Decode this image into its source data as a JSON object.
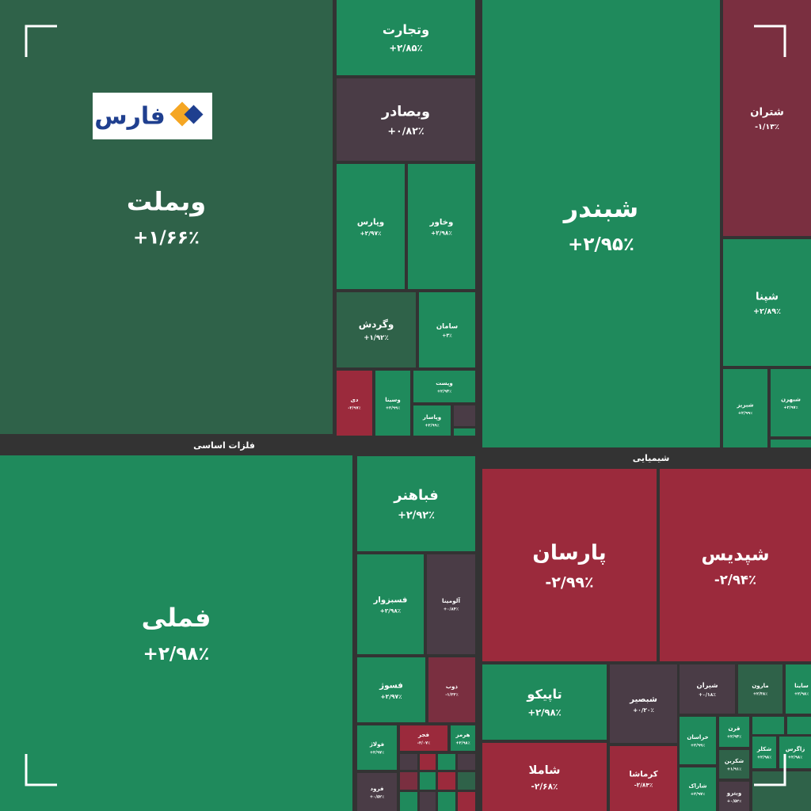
{
  "chart_data": {
    "type": "treemap",
    "logo": "فارس",
    "group_labels": [
      "فلزات اساسی",
      "شیمیایی"
    ],
    "categories": [
      "وبملت",
      "وتجارت",
      "وبصادر",
      "وپارس",
      "وخاور",
      "وگردش",
      "سامان",
      "دی",
      "وسینا",
      "وپست",
      "وپاسار",
      "شبندر",
      "شتران",
      "شپنا",
      "شبریز",
      "شبهرن",
      "فملی",
      "فباهنر",
      "فسبزوار",
      "آلومینا",
      "فسوژ",
      "ذوب",
      "فولاژ",
      "فجر",
      "هرمز",
      "فرود",
      "پارسان",
      "شپدیس",
      "تاپیکو",
      "شبصیر",
      "شاملا",
      "کرماشا",
      "شیران",
      "مارون",
      "ساینا",
      "خراسان",
      "قرن",
      "شکربن",
      "شاراک",
      "وبترو",
      "شکلر",
      "زاگرس"
    ],
    "values": [
      1.66,
      2.85,
      0.82,
      2.97,
      2.98,
      1.92,
      3,
      -2.97,
      2.99,
      2.94,
      2.99,
      2.95,
      -1.13,
      2.89,
      2.99,
      2.97,
      2.98,
      2.92,
      2.98,
      0.84,
      2.97,
      -1.33,
      2.97,
      -2.07,
      2.98,
      0.52,
      -2.99,
      -2.94,
      2.98,
      0.2,
      -2.68,
      -2.84,
      0.18,
      2.38,
      2.98,
      2.99,
      2.94,
      1.91,
      2.97,
      0.52,
      2.98,
      2.98
    ],
    "value_labels": [
      "+۱/۶۶٪",
      "+۲/۸۵٪",
      "+۰/۸۲٪",
      "+۲/۹۷٪",
      "+۲/۹۸٪",
      "+۱/۹۲٪",
      "+۳٪",
      "-۲/۹۷٪",
      "+۲/۹۹٪",
      "+۲/۹۴٪",
      "+۲/۹۹٪",
      "+۲/۹۵٪",
      "-۱/۱۳٪",
      "+۲/۸۹٪",
      "+۲/۹۹٪",
      "+۲/۹۷٪",
      "+۲/۹۸٪",
      "+۲/۹۲٪",
      "+۲/۹۸٪",
      "+۰/۸۴٪",
      "+۲/۹۷٪",
      "-۱/۳۳٪",
      "+۲/۹۷٪",
      "-۲/۰۷٪",
      "+۲/۹۸٪",
      "+۰/۵۲٪",
      "-۲/۹۹٪",
      "-۲/۹۴٪",
      "+۲/۹۸٪",
      "+۰/۲۰٪",
      "-۲/۶۸٪",
      "-۲/۸۴٪",
      "+۰/۱۸٪",
      "+۲/۳۸٪",
      "+۲/۹۸٪",
      "+۲/۹۹٪",
      "+۲/۹۴٪",
      "+۱/۹۱٪",
      "+۲/۹۷٪",
      "+۰/۵۲٪",
      "+۲/۹۸٪",
      "+۲/۹۸٪"
    ]
  }
}
